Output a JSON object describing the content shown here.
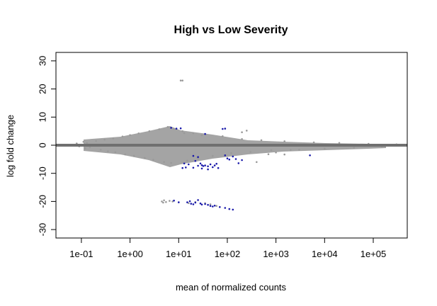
{
  "chart_data": {
    "type": "scatter",
    "title": "High vs Low Severity",
    "xlabel": "mean of normalized counts",
    "ylabel": "log fold change",
    "x_scale": "log10",
    "xlim": [
      0.03,
      500000
    ],
    "ylim": [
      -33,
      33
    ],
    "x_ticks": [
      {
        "value": 0.1,
        "label": "1e-01"
      },
      {
        "value": 1,
        "label": "1e+00"
      },
      {
        "value": 10,
        "label": "1e+01"
      },
      {
        "value": 100,
        "label": "1e+02"
      },
      {
        "value": 1000,
        "label": "1e+03"
      },
      {
        "value": 10000,
        "label": "1e+04"
      },
      {
        "value": 100000,
        "label": "1e+05"
      }
    ],
    "y_ticks": [
      {
        "value": -30,
        "label": "-30"
      },
      {
        "value": -20,
        "label": "-20"
      },
      {
        "value": -10,
        "label": "-10"
      },
      {
        "value": 0,
        "label": "0"
      },
      {
        "value": 10,
        "label": "10"
      },
      {
        "value": 20,
        "label": "20"
      },
      {
        "value": 30,
        "label": "30"
      }
    ],
    "reference_line": {
      "y": 0,
      "color": "#707070"
    },
    "grid": false,
    "colors": {
      "non_significant": "#9a9a9a",
      "significant": "#1a1aaa"
    },
    "series": [
      {
        "color": "#9a9a9a",
        "points": [
          [
            0.08,
            0.6
          ],
          [
            0.09,
            -0.4
          ],
          [
            0.11,
            1.2
          ],
          [
            0.12,
            -1.1
          ],
          [
            0.13,
            0.8
          ],
          [
            0.15,
            -0.7
          ],
          [
            0.2,
            1.5
          ],
          [
            0.25,
            -1.6
          ],
          [
            0.3,
            2.0
          ],
          [
            0.35,
            -2.2
          ],
          [
            0.45,
            2.4
          ],
          [
            0.5,
            -2.5
          ],
          [
            0.7,
            3.1
          ],
          [
            0.8,
            -3.3
          ],
          [
            1.0,
            3.6
          ],
          [
            1.2,
            -3.8
          ],
          [
            1.5,
            4.2
          ],
          [
            2.0,
            -4.5
          ],
          [
            2.5,
            5.0
          ],
          [
            3.0,
            -5.2
          ],
          [
            4.0,
            5.7
          ],
          [
            5.0,
            -6.0
          ],
          [
            6.0,
            6.5
          ],
          [
            7.0,
            -6.3
          ],
          [
            8.0,
            5.8
          ],
          [
            12.0,
            5.0
          ],
          [
            15.0,
            -5.5
          ],
          [
            20.0,
            4.2
          ],
          [
            25.0,
            -4.8
          ],
          [
            30.0,
            3.5
          ],
          [
            50.0,
            -3.8
          ],
          [
            80.0,
            3.2
          ],
          [
            120.0,
            -2.8
          ],
          [
            200.0,
            2.2
          ],
          [
            300.0,
            -2.4
          ],
          [
            500.0,
            1.8
          ],
          [
            800.0,
            -1.8
          ],
          [
            1500.0,
            1.4
          ],
          [
            3000.0,
            -1.6
          ],
          [
            6000.0,
            1.0
          ],
          [
            10000.0,
            -1.2
          ],
          [
            20000.0,
            0.8
          ],
          [
            40000.0,
            -0.9
          ],
          [
            80000.0,
            0.5
          ],
          [
            150000.0,
            -0.4
          ],
          [
            300000.0,
            0.3
          ],
          [
            11.0,
            23.0
          ],
          [
            12.0,
            23.0
          ],
          [
            13.0,
            4.3
          ],
          [
            200.0,
            4.6
          ],
          [
            250.0,
            5.2
          ],
          [
            400.0,
            -6.0
          ],
          [
            700.0,
            -3.2
          ],
          [
            1500.0,
            -3.3
          ],
          [
            4.5,
            -20.0
          ],
          [
            5.0,
            -19.6
          ],
          [
            5.5,
            -20.2
          ],
          [
            4.8,
            -20.4
          ],
          [
            6.5,
            -19.8
          ],
          [
            7.5,
            -20.0
          ],
          [
            16.0,
            -20.6
          ],
          [
            22.0,
            -20.2
          ],
          [
            35.0,
            -20.6
          ],
          [
            45.0,
            -21.0
          ],
          [
            60.0,
            -21.6
          ],
          [
            1000.0,
            -2.6
          ],
          [
            2000.0,
            -1.7
          ]
        ]
      },
      {
        "color": "#1a1aaa",
        "points": [
          [
            7.0,
            6.2
          ],
          [
            9.0,
            5.9
          ],
          [
            11.0,
            6.0
          ],
          [
            80.0,
            5.8
          ],
          [
            90.0,
            5.9
          ],
          [
            35.0,
            4.0
          ],
          [
            20.0,
            -3.8
          ],
          [
            25.0,
            -4.2
          ],
          [
            22.0,
            -5.6
          ],
          [
            28.0,
            -6.5
          ],
          [
            30.0,
            -7.1
          ],
          [
            32.0,
            -7.4
          ],
          [
            35.0,
            -7.2
          ],
          [
            40.0,
            -7.5
          ],
          [
            45.0,
            -6.8
          ],
          [
            50.0,
            -7.8
          ],
          [
            55.0,
            -7.2
          ],
          [
            60.0,
            -6.6
          ],
          [
            65.0,
            -8.1
          ],
          [
            40.0,
            -8.6
          ],
          [
            20.0,
            -8.0
          ],
          [
            25.0,
            -7.3
          ],
          [
            30.0,
            -8.3
          ],
          [
            16.0,
            -6.8
          ],
          [
            14.0,
            -7.9
          ],
          [
            12.0,
            -8.1
          ],
          [
            13.0,
            -6.5
          ],
          [
            100.0,
            -4.7
          ],
          [
            110.0,
            -5.1
          ],
          [
            130.0,
            -4.0
          ],
          [
            150.0,
            -4.9
          ],
          [
            200.0,
            -5.3
          ],
          [
            170.0,
            -6.4
          ],
          [
            90.0,
            -3.6
          ],
          [
            5000.0,
            -3.6
          ],
          [
            8.0,
            -19.7
          ],
          [
            10.0,
            -20.3
          ],
          [
            15.0,
            -20.3
          ],
          [
            17.0,
            -19.9
          ],
          [
            18.0,
            -20.8
          ],
          [
            20.0,
            -21.0
          ],
          [
            22.0,
            -20.4
          ],
          [
            25.0,
            -19.5
          ],
          [
            28.0,
            -20.7
          ],
          [
            30.0,
            -21.1
          ],
          [
            35.0,
            -20.9
          ],
          [
            40.0,
            -21.2
          ],
          [
            45.0,
            -21.6
          ],
          [
            50.0,
            -21.8
          ],
          [
            55.0,
            -21.5
          ],
          [
            70.0,
            -22.0
          ],
          [
            90.0,
            -22.3
          ],
          [
            110.0,
            -22.7
          ],
          [
            130.0,
            -22.9
          ]
        ]
      }
    ]
  }
}
